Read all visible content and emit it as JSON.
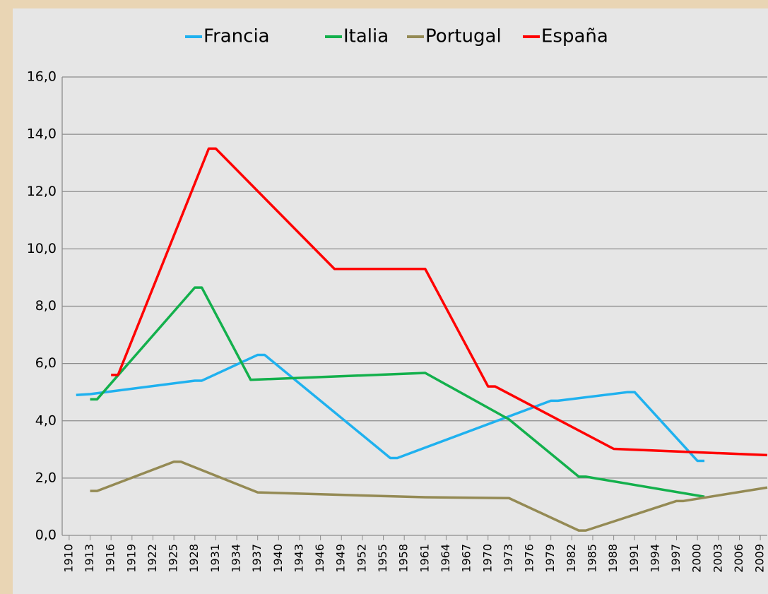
{
  "chart_data": {
    "type": "line",
    "xlim": [
      1909,
      2010
    ],
    "xticks": [
      1910,
      1913,
      1916,
      1919,
      1922,
      1925,
      1928,
      1931,
      1934,
      1937,
      1940,
      1943,
      1946,
      1949,
      1952,
      1955,
      1958,
      1961,
      1964,
      1967,
      1970,
      1973,
      1976,
      1979,
      1982,
      1985,
      1988,
      1991,
      1994,
      1997,
      2000,
      2003,
      2006,
      2009
    ],
    "ylim": [
      0,
      16
    ],
    "yticks": [
      {
        "value": 0,
        "label": "0,0"
      },
      {
        "value": 2,
        "label": "2,0"
      },
      {
        "value": 4,
        "label": "4,0"
      },
      {
        "value": 6,
        "label": "6,0"
      },
      {
        "value": 8,
        "label": "8,0"
      },
      {
        "value": 10,
        "label": "10,0"
      },
      {
        "value": 12,
        "label": "12,0"
      },
      {
        "value": 14,
        "label": "14,0"
      },
      {
        "value": 16,
        "label": "16,0"
      }
    ],
    "grid": true,
    "legend": "top",
    "series": [
      {
        "name": "Francia",
        "color": "#1fb1ef",
        "x": [
          1911,
          1913,
          1928,
          1929,
          1937,
          1938,
          1956,
          1957,
          1979,
          1980,
          1990,
          1991,
          2000,
          2001
        ],
        "values": [
          4.9,
          4.93,
          5.4,
          5.4,
          6.3,
          6.3,
          2.7,
          2.7,
          4.7,
          4.7,
          5.0,
          5.0,
          2.6,
          2.6
        ]
      },
      {
        "name": "Italia",
        "color": "#13b04c",
        "x": [
          1913,
          1914,
          1928,
          1929,
          1936,
          1961,
          1973,
          1983,
          1984,
          2001
        ],
        "values": [
          4.75,
          4.75,
          8.65,
          8.65,
          5.43,
          5.67,
          4.05,
          2.05,
          2.05,
          1.35
        ]
      },
      {
        "name": "Portugal",
        "color": "#948a54",
        "x": [
          1913,
          1914,
          1925,
          1926,
          1937,
          1961,
          1973,
          1983,
          1984,
          1997,
          1998,
          2010
        ],
        "values": [
          1.55,
          1.55,
          2.57,
          2.57,
          1.5,
          1.33,
          1.3,
          0.17,
          0.17,
          1.2,
          1.2,
          1.67
        ]
      },
      {
        "name": "España",
        "color": "#ff0000",
        "x": [
          1916,
          1917,
          1930,
          1931,
          1948,
          1961,
          1970,
          1971,
          1988,
          2010
        ],
        "values": [
          5.6,
          5.6,
          13.5,
          13.5,
          9.3,
          9.3,
          5.2,
          5.2,
          3.02,
          2.8
        ]
      }
    ]
  }
}
